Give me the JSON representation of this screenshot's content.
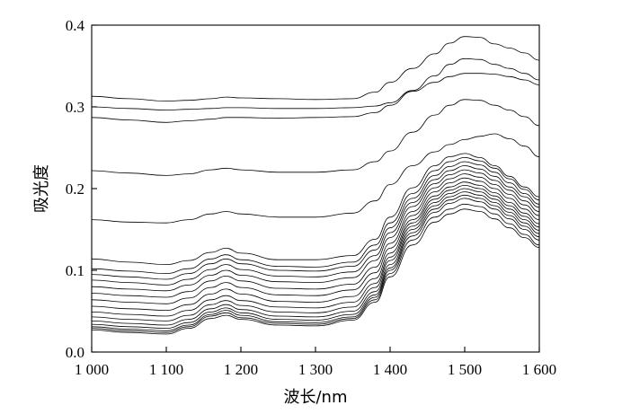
{
  "chart_data": {
    "type": "line",
    "xlabel": "波长/nm",
    "ylabel": "吸光度",
    "xlim": [
      1000,
      1600
    ],
    "ylim": [
      0.0,
      0.4
    ],
    "x_ticks": [
      1000,
      1100,
      1200,
      1300,
      1400,
      1500,
      1600
    ],
    "x_tick_labels": [
      "1 000",
      "1 100",
      "1 200",
      "1 300",
      "1 400",
      "1 500",
      "1 600"
    ],
    "y_ticks": [
      0.0,
      0.1,
      0.2,
      0.3,
      0.4
    ],
    "y_tick_labels": [
      "0.0",
      "0.1",
      "0.2",
      "0.3",
      "0.4"
    ],
    "grid": false,
    "legend": "none",
    "x": [
      1000,
      1050,
      1100,
      1130,
      1160,
      1180,
      1200,
      1250,
      1300,
      1350,
      1380,
      1400,
      1430,
      1460,
      1480,
      1500,
      1520,
      1540,
      1560,
      1580,
      1600
    ],
    "series": [
      {
        "values": [
          0.313,
          0.31,
          0.307,
          0.308,
          0.31,
          0.312,
          0.311,
          0.31,
          0.309,
          0.31,
          0.318,
          0.33,
          0.347,
          0.365,
          0.378,
          0.386,
          0.385,
          0.377,
          0.372,
          0.366,
          0.357
        ]
      },
      {
        "values": [
          0.3,
          0.298,
          0.296,
          0.297,
          0.298,
          0.299,
          0.299,
          0.298,
          0.298,
          0.299,
          0.301,
          0.305,
          0.32,
          0.338,
          0.352,
          0.359,
          0.358,
          0.352,
          0.347,
          0.341,
          0.333
        ]
      },
      {
        "values": [
          0.287,
          0.284,
          0.281,
          0.283,
          0.285,
          0.287,
          0.287,
          0.286,
          0.287,
          0.288,
          0.293,
          0.302,
          0.319,
          0.33,
          0.337,
          0.341,
          0.341,
          0.34,
          0.337,
          0.333,
          0.327
        ]
      },
      {
        "values": [
          0.222,
          0.219,
          0.216,
          0.218,
          0.223,
          0.225,
          0.223,
          0.22,
          0.22,
          0.223,
          0.233,
          0.246,
          0.269,
          0.29,
          0.302,
          0.309,
          0.308,
          0.302,
          0.296,
          0.288,
          0.277
        ]
      },
      {
        "values": [
          0.162,
          0.159,
          0.158,
          0.162,
          0.169,
          0.172,
          0.169,
          0.165,
          0.165,
          0.17,
          0.185,
          0.205,
          0.228,
          0.245,
          0.254,
          0.26,
          0.264,
          0.267,
          0.261,
          0.252,
          0.239
        ]
      },
      {
        "values": [
          0.114,
          0.11,
          0.107,
          0.112,
          0.122,
          0.127,
          0.121,
          0.113,
          0.113,
          0.118,
          0.138,
          0.165,
          0.201,
          0.228,
          0.239,
          0.243,
          0.238,
          0.228,
          0.215,
          0.202,
          0.19
        ]
      },
      {
        "values": [
          0.102,
          0.099,
          0.096,
          0.102,
          0.114,
          0.119,
          0.113,
          0.105,
          0.104,
          0.11,
          0.131,
          0.158,
          0.194,
          0.222,
          0.233,
          0.238,
          0.234,
          0.225,
          0.212,
          0.199,
          0.186
        ]
      },
      {
        "values": [
          0.095,
          0.092,
          0.089,
          0.096,
          0.108,
          0.114,
          0.108,
          0.1,
          0.099,
          0.105,
          0.125,
          0.152,
          0.188,
          0.216,
          0.227,
          0.233,
          0.229,
          0.22,
          0.207,
          0.194,
          0.181
        ]
      },
      {
        "values": [
          0.088,
          0.085,
          0.082,
          0.089,
          0.101,
          0.107,
          0.101,
          0.093,
          0.092,
          0.098,
          0.118,
          0.146,
          0.183,
          0.211,
          0.222,
          0.228,
          0.224,
          0.215,
          0.202,
          0.19,
          0.177
        ]
      },
      {
        "values": [
          0.08,
          0.077,
          0.075,
          0.082,
          0.094,
          0.1,
          0.094,
          0.086,
          0.085,
          0.091,
          0.112,
          0.14,
          0.178,
          0.206,
          0.217,
          0.223,
          0.219,
          0.21,
          0.198,
          0.185,
          0.172
        ]
      },
      {
        "values": [
          0.072,
          0.069,
          0.067,
          0.074,
          0.087,
          0.093,
          0.087,
          0.078,
          0.077,
          0.083,
          0.104,
          0.133,
          0.172,
          0.201,
          0.212,
          0.218,
          0.214,
          0.205,
          0.193,
          0.18,
          0.167
        ]
      },
      {
        "values": [
          0.064,
          0.061,
          0.059,
          0.066,
          0.079,
          0.085,
          0.079,
          0.07,
          0.069,
          0.076,
          0.097,
          0.127,
          0.167,
          0.196,
          0.207,
          0.213,
          0.209,
          0.2,
          0.188,
          0.175,
          0.162
        ]
      },
      {
        "values": [
          0.056,
          0.053,
          0.051,
          0.058,
          0.071,
          0.077,
          0.071,
          0.062,
          0.061,
          0.068,
          0.09,
          0.121,
          0.162,
          0.191,
          0.202,
          0.208,
          0.204,
          0.195,
          0.183,
          0.17,
          0.157
        ]
      },
      {
        "values": [
          0.049,
          0.046,
          0.044,
          0.051,
          0.064,
          0.069,
          0.063,
          0.055,
          0.054,
          0.061,
          0.084,
          0.116,
          0.158,
          0.187,
          0.198,
          0.204,
          0.2,
          0.191,
          0.179,
          0.166,
          0.153
        ]
      },
      {
        "values": [
          0.043,
          0.04,
          0.038,
          0.045,
          0.058,
          0.063,
          0.057,
          0.049,
          0.048,
          0.055,
          0.079,
          0.112,
          0.154,
          0.183,
          0.194,
          0.2,
          0.196,
          0.187,
          0.175,
          0.162,
          0.149
        ]
      },
      {
        "values": [
          0.038,
          0.035,
          0.033,
          0.04,
          0.053,
          0.058,
          0.052,
          0.044,
          0.043,
          0.05,
          0.074,
          0.107,
          0.15,
          0.179,
          0.19,
          0.196,
          0.192,
          0.183,
          0.171,
          0.158,
          0.145
        ]
      },
      {
        "values": [
          0.034,
          0.031,
          0.029,
          0.036,
          0.049,
          0.054,
          0.048,
          0.04,
          0.039,
          0.046,
          0.07,
          0.103,
          0.146,
          0.175,
          0.186,
          0.192,
          0.188,
          0.179,
          0.167,
          0.154,
          0.141
        ]
      },
      {
        "values": [
          0.031,
          0.028,
          0.026,
          0.033,
          0.046,
          0.051,
          0.045,
          0.037,
          0.036,
          0.043,
          0.067,
          0.1,
          0.142,
          0.171,
          0.182,
          0.188,
          0.184,
          0.175,
          0.163,
          0.15,
          0.137
        ]
      },
      {
        "values": [
          0.029,
          0.026,
          0.024,
          0.031,
          0.044,
          0.048,
          0.042,
          0.035,
          0.034,
          0.041,
          0.064,
          0.096,
          0.137,
          0.165,
          0.175,
          0.181,
          0.178,
          0.169,
          0.157,
          0.144,
          0.131
        ]
      },
      {
        "values": [
          0.027,
          0.024,
          0.022,
          0.029,
          0.041,
          0.045,
          0.04,
          0.033,
          0.032,
          0.039,
          0.061,
          0.092,
          0.131,
          0.159,
          0.169,
          0.175,
          0.172,
          0.163,
          0.152,
          0.14,
          0.128
        ]
      }
    ]
  }
}
